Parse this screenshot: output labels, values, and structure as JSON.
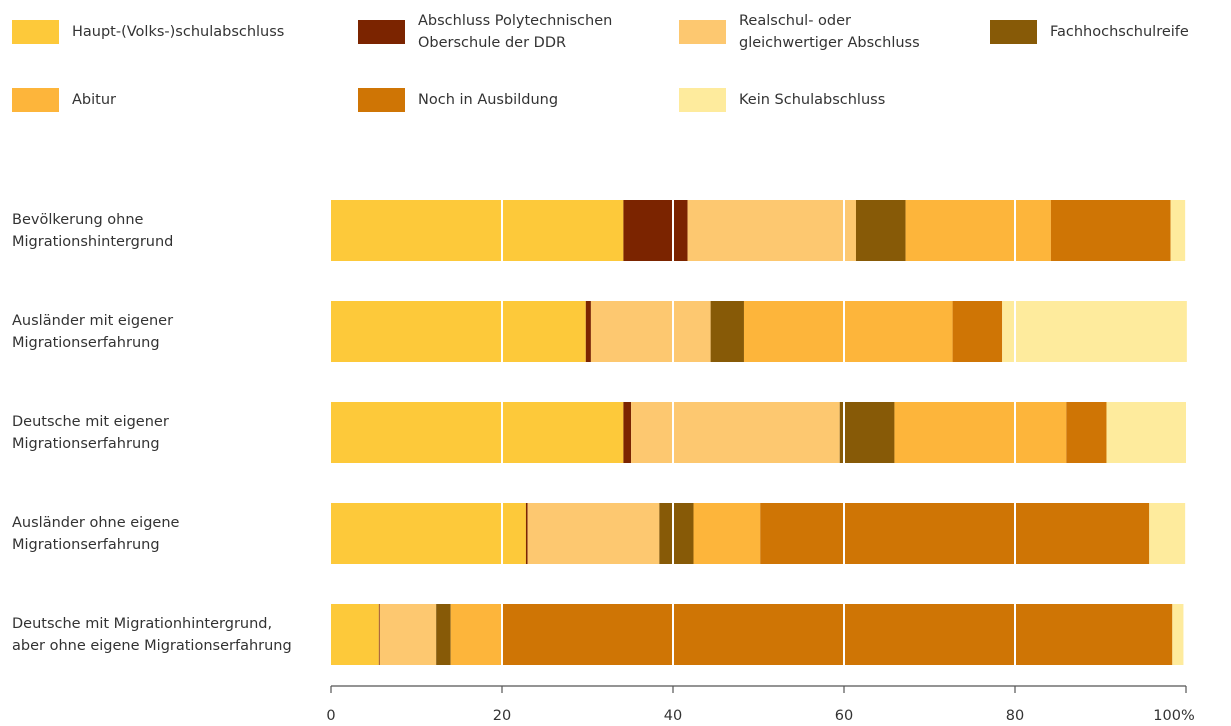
{
  "chart_data": {
    "type": "bar",
    "orientation": "horizontal",
    "stacked": true,
    "title": "",
    "xlabel": "",
    "ylabel": "",
    "xlim": [
      0,
      100
    ],
    "x_ticks": [
      "0",
      "20",
      "40",
      "60",
      "80",
      "100%"
    ],
    "grid": true,
    "legend_position": "top",
    "categories": [
      "Bevölkerung ohne\nMigrationshintergrund",
      "Ausländer mit eigener\nMigrationserfahrung",
      "Deutsche mit eigener\nMigrationserfahrung",
      "Ausländer ohne eigene\nMigrationserfahrung",
      "Deutsche mit Migrationhintergrund,\naber ohne eigene Migrationserfahrung"
    ],
    "series": [
      {
        "name": "Haupt-(Volks-)schulabschluss",
        "color": "#FDC93A",
        "values": [
          34.2,
          29.8,
          34.2,
          22.8,
          5.6
        ]
      },
      {
        "name": "Abschluss Polytechnischen\nOberschule der DDR",
        "color": "#7B2400",
        "values": [
          7.5,
          0.6,
          0.9,
          0.2,
          0.1
        ]
      },
      {
        "name": "Realschul- oder\ngleichwertiger Abschluss",
        "color": "#FDC870",
        "values": [
          19.7,
          14.0,
          24.4,
          15.4,
          6.6
        ]
      },
      {
        "name": "Fachhochschulreife",
        "color": "#875A07",
        "values": [
          5.8,
          3.9,
          6.4,
          4.0,
          1.7
        ]
      },
      {
        "name": "Abitur",
        "color": "#FDB53B",
        "values": [
          17.0,
          24.4,
          20.1,
          7.8,
          5.9
        ]
      },
      {
        "name": "Noch in Ausbildung",
        "color": "#CF7505",
        "values": [
          14.0,
          5.8,
          4.7,
          45.5,
          78.5
        ]
      },
      {
        "name": "Kein Schulabschluss",
        "color": "#FEEB9D",
        "values": [
          1.7,
          21.6,
          9.3,
          4.2,
          1.3
        ]
      }
    ]
  }
}
